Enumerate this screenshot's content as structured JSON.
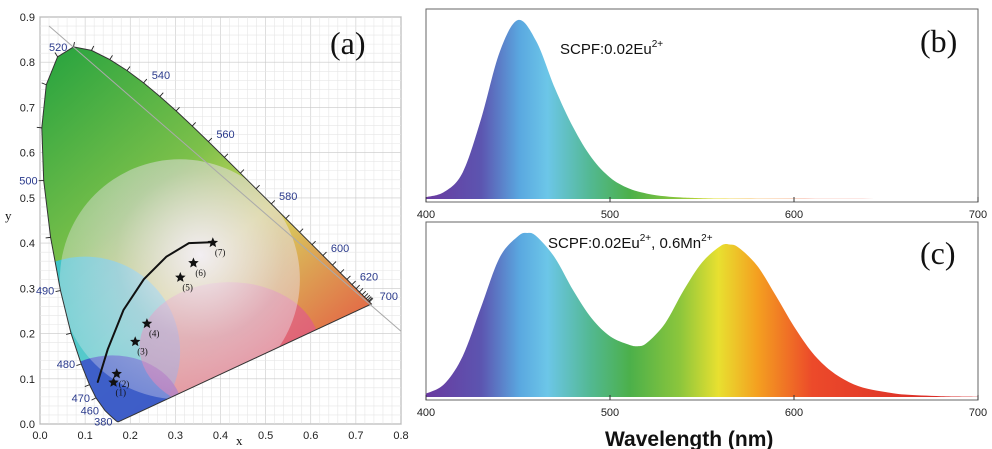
{
  "chart_data": [
    {
      "type": "scatter",
      "panel_label": "(a)",
      "xlabel": "x",
      "ylabel": "y",
      "xlim": [
        0.0,
        0.8
      ],
      "ylim": [
        0.0,
        0.9
      ],
      "grid": true,
      "x_ticks": [
        "0.0",
        "0.1",
        "0.2",
        "0.3",
        "0.4",
        "0.5",
        "0.6",
        "0.7",
        "0.8"
      ],
      "y_ticks": [
        "0.0",
        "0.1",
        "0.2",
        "0.3",
        "0.4",
        "0.5",
        "0.6",
        "0.7",
        "0.8",
        "0.9"
      ],
      "wavelength_labels": [
        {
          "text": "380",
          "x": 0.174,
          "y": 0.005
        },
        {
          "text": "460",
          "x": 0.144,
          "y": 0.03
        },
        {
          "text": "470",
          "x": 0.124,
          "y": 0.058
        },
        {
          "text": "480",
          "x": 0.091,
          "y": 0.133
        },
        {
          "text": "490",
          "x": 0.045,
          "y": 0.295
        },
        {
          "text": "500",
          "x": 0.008,
          "y": 0.538
        },
        {
          "text": "520",
          "x": 0.074,
          "y": 0.834
        },
        {
          "text": "540",
          "x": 0.23,
          "y": 0.754
        },
        {
          "text": "560",
          "x": 0.373,
          "y": 0.624
        },
        {
          "text": "580",
          "x": 0.512,
          "y": 0.487
        },
        {
          "text": "600",
          "x": 0.627,
          "y": 0.372
        },
        {
          "text": "620",
          "x": 0.691,
          "y": 0.308
        },
        {
          "text": "700",
          "x": 0.735,
          "y": 0.265
        }
      ],
      "points": [
        {
          "label": "(1)",
          "x": 0.163,
          "y": 0.092
        },
        {
          "label": "(2)",
          "x": 0.17,
          "y": 0.111
        },
        {
          "label": "(3)",
          "x": 0.211,
          "y": 0.182
        },
        {
          "label": "(4)",
          "x": 0.237,
          "y": 0.222
        },
        {
          "label": "(5)",
          "x": 0.311,
          "y": 0.324
        },
        {
          "label": "(6)",
          "x": 0.34,
          "y": 0.356
        },
        {
          "label": "(7)",
          "x": 0.383,
          "y": 0.401
        }
      ],
      "planckian_locus": [
        [
          0.128,
          0.093
        ],
        [
          0.15,
          0.165
        ],
        [
          0.185,
          0.252
        ],
        [
          0.23,
          0.32
        ],
        [
          0.28,
          0.37
        ],
        [
          0.33,
          0.4
        ],
        [
          0.38,
          0.402
        ]
      ]
    },
    {
      "type": "area",
      "panel_label": "(b)",
      "annotation": {
        "base": "SCPF:0.02Eu",
        "sup": "2+",
        "tail": ""
      },
      "x_ticks": [
        "400",
        "500",
        "600",
        "700"
      ],
      "xlim": [
        400,
        700
      ],
      "ylim": [
        0,
        1
      ],
      "series": [
        {
          "x": [
            400,
            410,
            420,
            430,
            440,
            450,
            460,
            470,
            480,
            490,
            500,
            510,
            520,
            530,
            540,
            560,
            600,
            650,
            700
          ],
          "values": [
            0.01,
            0.04,
            0.15,
            0.45,
            0.82,
            1.0,
            0.88,
            0.62,
            0.4,
            0.23,
            0.12,
            0.06,
            0.03,
            0.015,
            0.008,
            0.003,
            0.001,
            0.0,
            0.0
          ]
        }
      ]
    },
    {
      "type": "area",
      "panel_label": "(c)",
      "annotation": {
        "base": "SCPF:0.02Eu",
        "sup": "2+",
        "tail": ", 0.6Mn"
      },
      "annotation_sup2": "2+",
      "x_ticks": [
        "400",
        "500",
        "600",
        "700"
      ],
      "xlabel": "Wavelength (nm)",
      "xlim": [
        400,
        700
      ],
      "ylim": [
        0,
        1
      ],
      "series": [
        {
          "x": [
            400,
            410,
            420,
            430,
            440,
            450,
            455,
            460,
            470,
            480,
            490,
            500,
            510,
            515,
            520,
            530,
            540,
            550,
            560,
            565,
            570,
            580,
            590,
            600,
            610,
            620,
            630,
            640,
            650,
            660,
            680,
            700
          ],
          "values": [
            0.02,
            0.08,
            0.25,
            0.55,
            0.85,
            0.98,
            1.0,
            0.98,
            0.85,
            0.65,
            0.48,
            0.37,
            0.32,
            0.31,
            0.33,
            0.45,
            0.65,
            0.82,
            0.92,
            0.93,
            0.91,
            0.8,
            0.62,
            0.43,
            0.27,
            0.16,
            0.09,
            0.05,
            0.03,
            0.015,
            0.005,
            0.002
          ]
        }
      ]
    }
  ]
}
